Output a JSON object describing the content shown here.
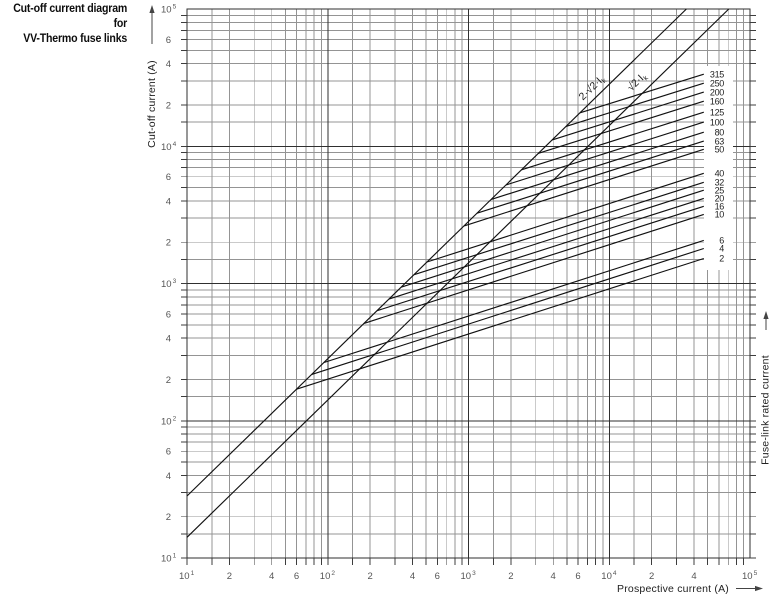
{
  "header": {
    "title_line1": "Cut-off current diagram for",
    "title_line2": "VV-Thermo fuse links"
  },
  "icons": {
    "y_axis_arrow": "up-arrow",
    "x_axis_arrow": "right-arrow",
    "right_axis_arrow": "up-arrow"
  },
  "chart_data": {
    "type": "line",
    "title": "Cut-off current diagram for VV-Thermo fuse links",
    "xlabel": "Prospective current (A)",
    "ylabel": "Cut-off current (A)",
    "ylabel_right": "Fuse-link rated current",
    "xscale": "log",
    "yscale": "log",
    "xlim": [
      10,
      100000
    ],
    "ylim": [
      10,
      100000
    ],
    "grid": "log major + minor",
    "legend_position": "curve labels at right edge",
    "palette": {
      "background": "#ffffff",
      "grid_minor": "#949494",
      "grid_major": "#2f2f2f",
      "curve": "#111111",
      "tick_text": "#555555",
      "axis_text": "#222222"
    },
    "reference_lines": [
      {
        "label": "2·√2·I",
        "sub": "k",
        "factor": 2.8284
      },
      {
        "label": "√2·I",
        "sub": "k",
        "factor": 1.4142
      }
    ],
    "curve_end_prospective": 47000,
    "curves": [
      {
        "rating": "315",
        "prospective_start": 6200,
        "cutoff_end": 33500
      },
      {
        "rating": "250",
        "prospective_start": 4930,
        "cutoff_end": 28800
      },
      {
        "rating": "200",
        "prospective_start": 3930,
        "cutoff_end": 24800
      },
      {
        "rating": "160",
        "prospective_start": 3140,
        "cutoff_end": 21300
      },
      {
        "rating": "125",
        "prospective_start": 2380,
        "cutoff_end": 17700
      },
      {
        "rating": "100",
        "prospective_start": 1850,
        "cutoff_end": 15000
      },
      {
        "rating": "80",
        "prospective_start": 1450,
        "cutoff_end": 12650
      },
      {
        "rating": "63",
        "prospective_start": 1150,
        "cutoff_end": 10900
      },
      {
        "rating": "50",
        "prospective_start": 930,
        "cutoff_end": 9500
      },
      {
        "rating": "40",
        "prospective_start": 507,
        "cutoff_end": 6350
      },
      {
        "rating": "32",
        "prospective_start": 410,
        "cutoff_end": 5460
      },
      {
        "rating": "25",
        "prospective_start": 332,
        "cutoff_end": 4780
      },
      {
        "rating": "20",
        "prospective_start": 272,
        "cutoff_end": 4170
      },
      {
        "rating": "16",
        "prospective_start": 224,
        "cutoff_end": 3650
      },
      {
        "rating": "10",
        "prospective_start": 181,
        "cutoff_end": 3190
      },
      {
        "rating": "6",
        "prospective_start": 94,
        "cutoff_end": 2060
      },
      {
        "rating": "4",
        "prospective_start": 77,
        "cutoff_end": 1800
      },
      {
        "rating": "2",
        "prospective_start": 60,
        "cutoff_end": 1520
      }
    ],
    "x_ticks": [
      {
        "v": 10,
        "t": "10",
        "exp": "1"
      },
      {
        "v": 20,
        "t": "2"
      },
      {
        "v": 40,
        "t": "4"
      },
      {
        "v": 60,
        "t": "6"
      },
      {
        "v": 100,
        "t": "10",
        "exp": "2"
      },
      {
        "v": 200,
        "t": "2"
      },
      {
        "v": 400,
        "t": "4"
      },
      {
        "v": 600,
        "t": "6"
      },
      {
        "v": 1000,
        "t": "10",
        "exp": "3"
      },
      {
        "v": 2000,
        "t": "2"
      },
      {
        "v": 4000,
        "t": "4"
      },
      {
        "v": 6000,
        "t": "6"
      },
      {
        "v": 10000,
        "t": "10",
        "exp": "4"
      },
      {
        "v": 20000,
        "t": "2"
      },
      {
        "v": 40000,
        "t": "4"
      },
      {
        "v": 100000,
        "t": "10",
        "exp": "5"
      }
    ],
    "y_ticks": [
      {
        "v": 10,
        "t": "10",
        "exp": "1"
      },
      {
        "v": 20,
        "t": "2"
      },
      {
        "v": 40,
        "t": "4"
      },
      {
        "v": 60,
        "t": "6"
      },
      {
        "v": 100,
        "t": "10",
        "exp": "2"
      },
      {
        "v": 200,
        "t": "2"
      },
      {
        "v": 400,
        "t": "4"
      },
      {
        "v": 600,
        "t": "6"
      },
      {
        "v": 1000,
        "t": "10",
        "exp": "3"
      },
      {
        "v": 2000,
        "t": "2"
      },
      {
        "v": 4000,
        "t": "4"
      },
      {
        "v": 6000,
        "t": "6"
      },
      {
        "v": 10000,
        "t": "10",
        "exp": "4"
      },
      {
        "v": 20000,
        "t": "2"
      },
      {
        "v": 40000,
        "t": "4"
      },
      {
        "v": 60000,
        "t": "6"
      },
      {
        "v": 100000,
        "t": "10",
        "exp": "5"
      }
    ]
  }
}
